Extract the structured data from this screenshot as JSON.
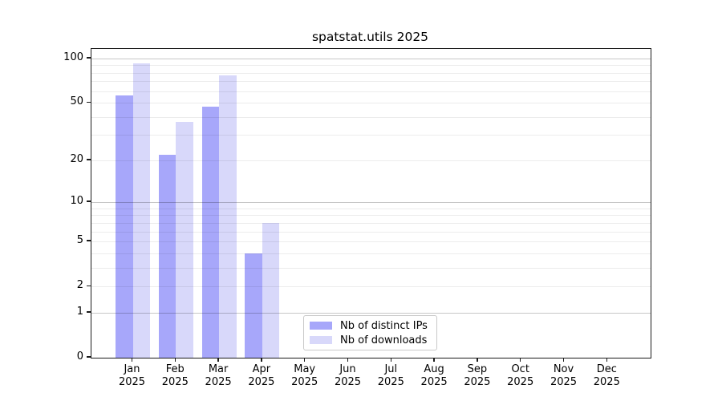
{
  "chart_data": {
    "type": "bar",
    "title": "spatstat.utils 2025",
    "categories": [
      "Jan",
      "Feb",
      "Mar",
      "Apr",
      "May",
      "Jun",
      "Jul",
      "Aug",
      "Sep",
      "Oct",
      "Nov",
      "Dec"
    ],
    "x_year_label": "2025",
    "series": [
      {
        "name": "Nb of distinct IPs",
        "color": "#a7a7fa",
        "values": [
          56,
          22,
          47,
          4,
          null,
          null,
          null,
          null,
          null,
          null,
          null,
          null
        ]
      },
      {
        "name": "Nb of downloads",
        "color": "#d8d8fa",
        "values": [
          93,
          37,
          77,
          7,
          null,
          null,
          null,
          null,
          null,
          null,
          null,
          null
        ]
      }
    ],
    "y_ticks": [
      0,
      1,
      2,
      5,
      10,
      20,
      50,
      100
    ],
    "y_minor_gridlines": [
      2,
      3,
      4,
      5,
      6,
      7,
      8,
      9,
      20,
      30,
      40,
      50,
      60,
      70,
      80,
      90
    ],
    "y_major_gridlines": [
      1,
      10,
      100
    ],
    "y_scale": "log10(1+x)",
    "ylim": [
      0,
      110
    ],
    "xlabel": "",
    "ylabel": "",
    "grid": true,
    "legend_position": "bottom-center"
  }
}
